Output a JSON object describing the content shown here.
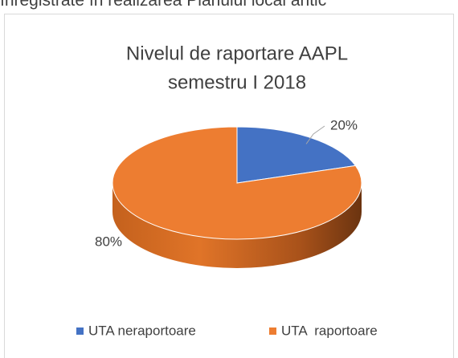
{
  "document_text": "înregistrate în realizarea Planului local antic",
  "chart_data": {
    "type": "pie3d",
    "title": [
      "Nivelul de raportare AAPL",
      "semestru I 2018"
    ],
    "categories": [
      "UTA neraportoare",
      "UTA  raportoare"
    ],
    "values": [
      20,
      80
    ],
    "value_labels": [
      "20%",
      "80%"
    ],
    "colors": [
      "#4472c4",
      "#ed7d31"
    ],
    "legend": "bottom"
  }
}
